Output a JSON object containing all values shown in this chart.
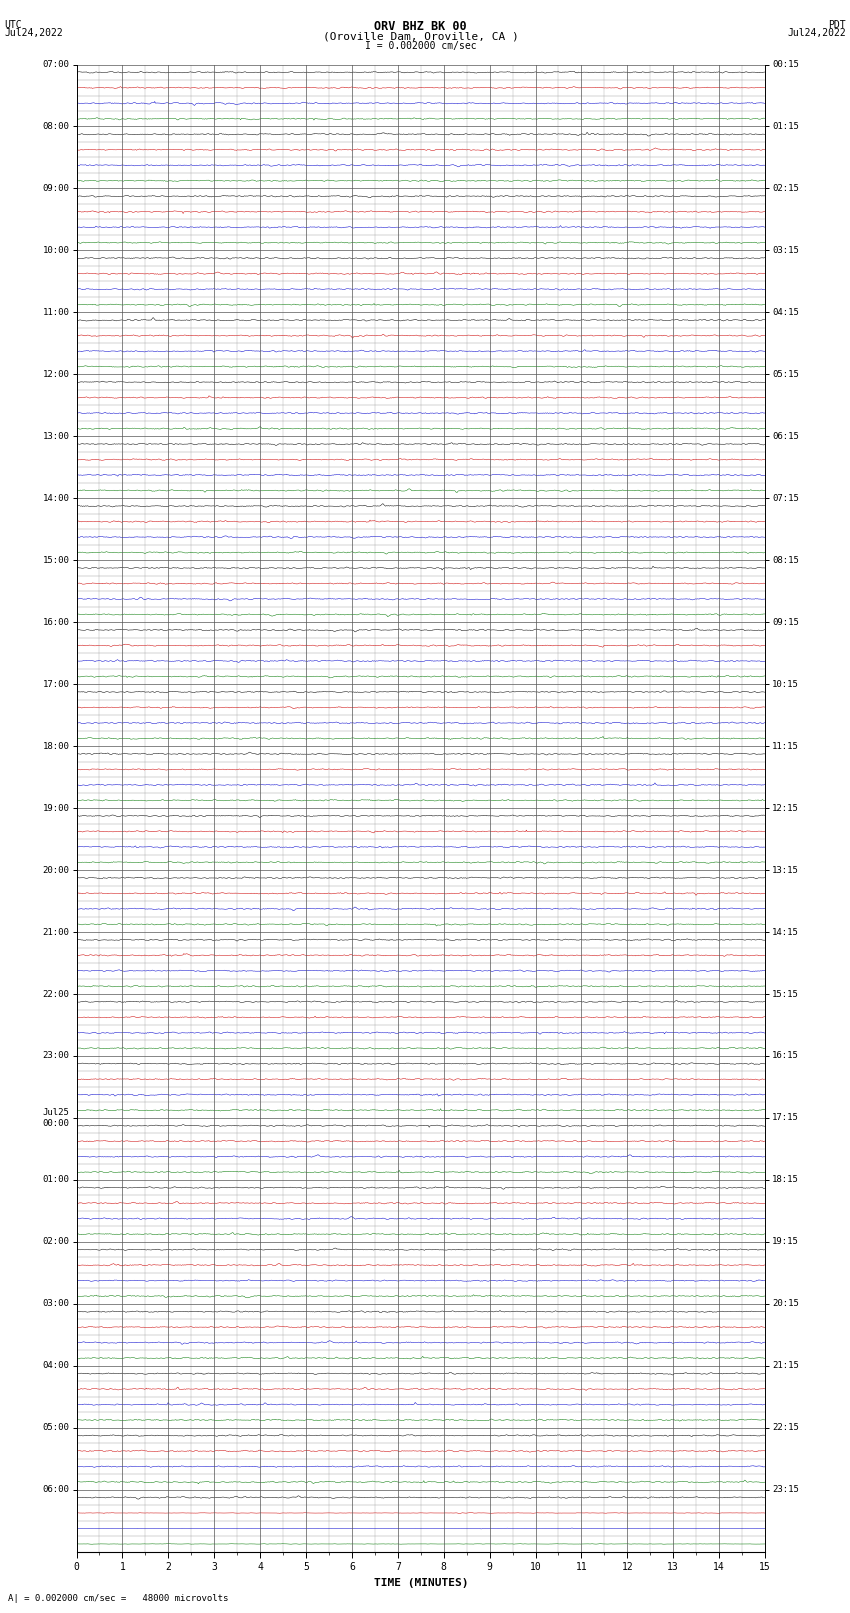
{
  "title_line1": "ORV BHZ BK 00",
  "title_line2": "(Oroville Dam, Oroville, CA )",
  "scale_text": "I = 0.002000 cm/sec",
  "footer_text": "A| = 0.002000 cm/sec =   48000 microvolts",
  "left_label_top": "UTC",
  "left_label_bot": "Jul24,2022",
  "right_label_top": "PDT",
  "right_label_bot": "Jul24,2022",
  "xlabel": "TIME (MINUTES)",
  "bg_color": "#ffffff",
  "minutes_per_row": 15,
  "num_rows": 96,
  "trace_colors": [
    "#000000",
    "#cc0000",
    "#0000cc",
    "#007700"
  ],
  "grid_major_color": "#555555",
  "grid_minor_color": "#999999",
  "utc_labels_every4": [
    "07:00",
    "08:00",
    "09:00",
    "10:00",
    "11:00",
    "12:00",
    "13:00",
    "14:00",
    "15:00",
    "16:00",
    "17:00",
    "18:00",
    "19:00",
    "20:00",
    "21:00",
    "22:00",
    "23:00",
    "Jul25\n00:00",
    "01:00",
    "02:00",
    "03:00",
    "04:00",
    "05:00",
    "06:00"
  ],
  "pdt_labels_every4": [
    "00:15",
    "01:15",
    "02:15",
    "03:15",
    "04:15",
    "05:15",
    "06:15",
    "07:15",
    "08:15",
    "09:15",
    "10:15",
    "11:15",
    "12:15",
    "13:15",
    "14:15",
    "15:15",
    "16:15",
    "17:15",
    "18:15",
    "19:15",
    "20:15",
    "21:15",
    "22:15",
    "23:15"
  ]
}
